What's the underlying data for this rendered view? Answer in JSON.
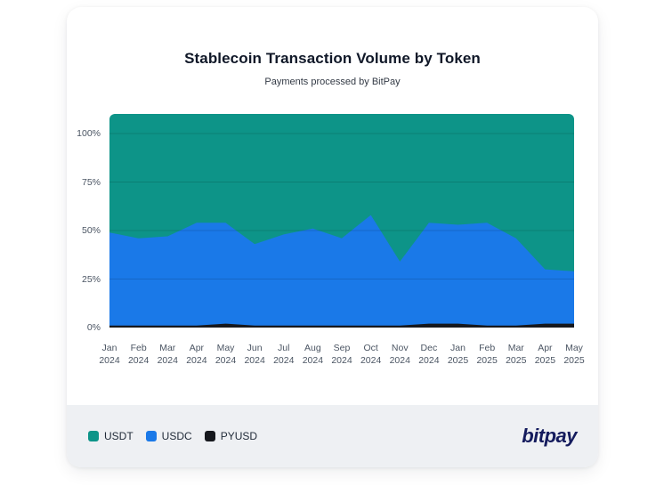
{
  "card": {
    "title": "Stablecoin Transaction Volume by Token",
    "subtitle": "Payments processed by BitPay"
  },
  "chart_data": {
    "type": "area",
    "stacked": true,
    "normalized": "percent-of-total",
    "title": "Stablecoin Transaction Volume by Token",
    "subtitle": "Payments processed by BitPay",
    "x": [
      "Jan 2024",
      "Feb 2024",
      "Mar 2024",
      "Apr 2024",
      "May 2024",
      "Jun 2024",
      "Jul 2024",
      "Aug 2024",
      "Sep 2024",
      "Oct 2024",
      "Nov 2024",
      "Dec 2024",
      "Jan 2025",
      "Feb 2025",
      "Mar 2025",
      "Apr 2025",
      "May 2025"
    ],
    "y_ticks": [
      {
        "label": "0%",
        "value": 0
      },
      {
        "label": "25%",
        "value": 25
      },
      {
        "label": "50%",
        "value": 50
      },
      {
        "label": "75%",
        "value": 75
      },
      {
        "label": "100%",
        "value": 100
      }
    ],
    "ylim": [
      0,
      110
    ],
    "grid": true,
    "legend_position": "bottom-left",
    "series": [
      {
        "name": "USDT",
        "color": "#0d9488",
        "values": [
          51,
          54,
          53,
          46,
          46,
          57,
          52,
          49,
          54,
          42,
          66,
          46,
          47,
          46,
          54,
          70,
          71
        ]
      },
      {
        "name": "USDC",
        "color": "#1a79e8",
        "values": [
          48,
          45,
          46,
          53,
          52,
          42,
          47,
          50,
          45,
          57,
          33,
          52,
          51,
          53,
          45,
          28,
          27
        ]
      },
      {
        "name": "PYUSD",
        "color": "#16181d",
        "values": [
          1,
          1,
          1,
          1,
          2,
          1,
          1,
          1,
          1,
          1,
          1,
          2,
          2,
          1,
          1,
          2,
          2
        ]
      }
    ]
  },
  "legend": {
    "items": [
      {
        "label": "USDT",
        "color": "#0d9488"
      },
      {
        "label": "USDC",
        "color": "#1a79e8"
      },
      {
        "label": "PYUSD",
        "color": "#16181d"
      }
    ]
  },
  "footer": {
    "brand": "bitpay"
  }
}
